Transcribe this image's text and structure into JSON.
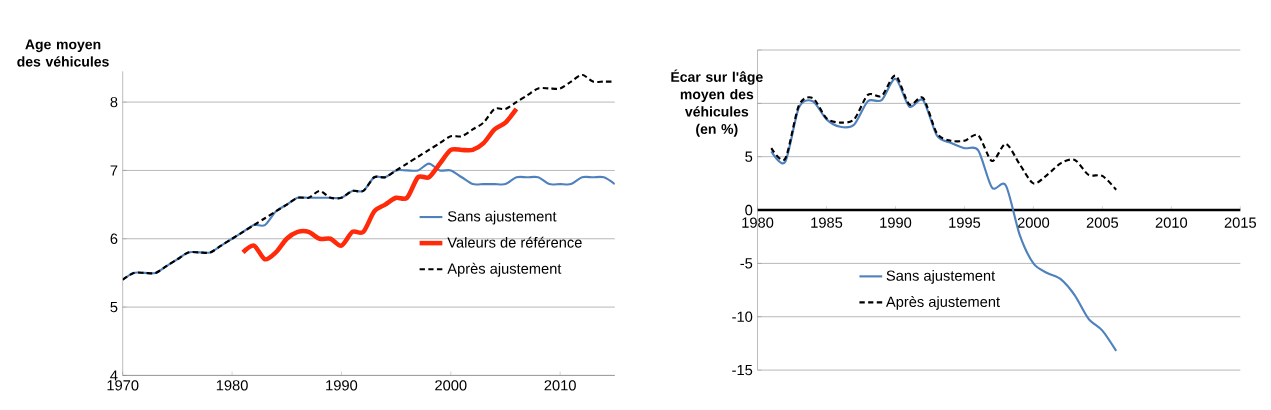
{
  "chart_data": [
    {
      "type": "line",
      "ylabel": "Age moyen des véhicules",
      "xlim": [
        1970,
        2015
      ],
      "xticks": [
        1970,
        1980,
        1990,
        2000,
        2010
      ],
      "ylim": [
        4,
        8.45
      ],
      "yticks": [
        4,
        5,
        6,
        7,
        8
      ],
      "grid": "y",
      "legend": "right",
      "series": [
        {
          "name": "Sans ajustement",
          "color": "#4f81bd",
          "line_style": "solid",
          "x": [
            1970,
            1971,
            1972,
            1973,
            1974,
            1975,
            1976,
            1977,
            1978,
            1979,
            1980,
            1981,
            1982,
            1983,
            1984,
            1985,
            1986,
            1987,
            1988,
            1989,
            1990,
            1991,
            1992,
            1993,
            1994,
            1995,
            1996,
            1997,
            1998,
            1999,
            2000,
            2001,
            2002,
            2003,
            2004,
            2005,
            2006,
            2007,
            2008,
            2009,
            2010,
            2011,
            2012,
            2013,
            2014,
            2015
          ],
          "values": [
            5.4,
            5.5,
            5.5,
            5.5,
            5.6,
            5.7,
            5.8,
            5.8,
            5.8,
            5.9,
            6.0,
            6.1,
            6.2,
            6.2,
            6.4,
            6.5,
            6.6,
            6.6,
            6.6,
            6.6,
            6.6,
            6.7,
            6.7,
            6.9,
            6.9,
            7.0,
            7.0,
            7.0,
            7.1,
            7.0,
            7.0,
            6.9,
            6.8,
            6.8,
            6.8,
            6.8,
            6.9,
            6.9,
            6.9,
            6.8,
            6.8,
            6.8,
            6.9,
            6.9,
            6.9,
            6.8
          ]
        },
        {
          "name": "Valeurs de référence",
          "color": "#ff2a0a",
          "line_style": "solid",
          "x": [
            1981,
            1982,
            1983,
            1984,
            1985,
            1986,
            1987,
            1988,
            1989,
            1990,
            1991,
            1992,
            1993,
            1994,
            1995,
            1996,
            1997,
            1998,
            1999,
            2000,
            2001,
            2002,
            2003,
            2004,
            2005,
            2006
          ],
          "values": [
            5.8,
            5.9,
            5.7,
            5.8,
            6.0,
            6.1,
            6.1,
            6.0,
            6.0,
            5.9,
            6.1,
            6.1,
            6.4,
            6.5,
            6.6,
            6.6,
            6.9,
            6.9,
            7.1,
            7.3,
            7.3,
            7.3,
            7.4,
            7.6,
            7.7,
            7.9
          ]
        },
        {
          "name": "Après ajustement",
          "color": "#000000",
          "line_style": "dashed",
          "x": [
            1970,
            1971,
            1972,
            1973,
            1974,
            1975,
            1976,
            1977,
            1978,
            1979,
            1980,
            1981,
            1982,
            1983,
            1984,
            1985,
            1986,
            1987,
            1988,
            1989,
            1990,
            1991,
            1992,
            1993,
            1994,
            1995,
            1996,
            1997,
            1998,
            1999,
            2000,
            2001,
            2002,
            2003,
            2004,
            2005,
            2006,
            2007,
            2008,
            2009,
            2010,
            2011,
            2012,
            2013,
            2014,
            2015
          ],
          "values": [
            5.4,
            5.5,
            5.5,
            5.5,
            5.6,
            5.7,
            5.8,
            5.8,
            5.8,
            5.9,
            6.0,
            6.1,
            6.2,
            6.3,
            6.4,
            6.5,
            6.6,
            6.6,
            6.7,
            6.6,
            6.6,
            6.7,
            6.7,
            6.9,
            6.9,
            7.0,
            7.1,
            7.2,
            7.3,
            7.4,
            7.5,
            7.5,
            7.6,
            7.7,
            7.9,
            7.9,
            8.0,
            8.1,
            8.2,
            8.2,
            8.2,
            8.3,
            8.4,
            8.3,
            8.3,
            8.3
          ]
        }
      ]
    },
    {
      "type": "line",
      "ylabel": "Écar sur l'âge moyen des véhicules (en %)",
      "xlim": [
        1980,
        2015
      ],
      "xticks": [
        1980,
        1985,
        1990,
        1995,
        2000,
        2005,
        2010,
        2015
      ],
      "ylim": [
        -15,
        15
      ],
      "yticks": [
        -15,
        -10,
        -5,
        0,
        5,
        {
          "value": 10,
          "label": null
        },
        {
          "value": 15,
          "label": null
        }
      ],
      "grid": "y",
      "legend": "bottom",
      "series": [
        {
          "name": "Sans ajustement",
          "color": "#4f81bd",
          "line_style": "solid",
          "x": [
            1981,
            1982,
            1983,
            1984,
            1985,
            1986,
            1987,
            1988,
            1989,
            1990,
            1991,
            1992,
            1993,
            1994,
            1995,
            1996,
            1997,
            1998,
            1999,
            2000,
            2001,
            2002,
            2003,
            2004,
            2005,
            2006
          ],
          "values": [
            5.5,
            4.5,
            9.6,
            10.2,
            8.5,
            7.8,
            8.0,
            10.2,
            10.3,
            12.3,
            9.7,
            10.3,
            7.0,
            6.3,
            5.8,
            5.6,
            2.1,
            2.3,
            -2.3,
            -5.0,
            -5.9,
            -6.5,
            -8.0,
            -10.2,
            -11.3,
            -13.2
          ]
        },
        {
          "name": "Après ajustement",
          "color": "#000000",
          "line_style": "dashed",
          "x": [
            1981,
            1982,
            1983,
            1984,
            1985,
            1986,
            1987,
            1988,
            1989,
            1990,
            1991,
            1992,
            1993,
            1994,
            1995,
            1996,
            1997,
            1998,
            1999,
            2000,
            2001,
            2002,
            2003,
            2004,
            2005,
            2006
          ],
          "values": [
            5.8,
            4.8,
            9.8,
            10.5,
            8.6,
            8.2,
            8.5,
            10.8,
            10.7,
            12.6,
            9.9,
            10.5,
            7.2,
            6.5,
            6.5,
            7.0,
            4.6,
            6.2,
            4.3,
            2.5,
            3.3,
            4.4,
            4.7,
            3.3,
            3.2,
            1.9
          ]
        }
      ]
    }
  ]
}
